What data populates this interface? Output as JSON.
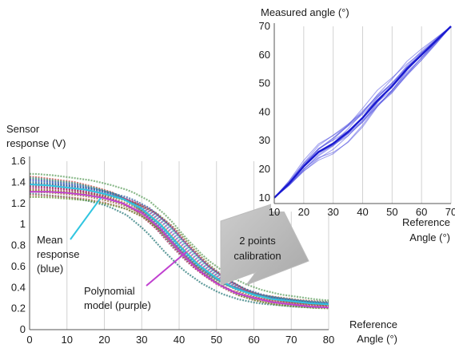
{
  "chart_data": [
    {
      "id": "sensor",
      "type": "line",
      "ylabel_lines": [
        "Sensor",
        "response (V)"
      ],
      "xlabel_lines": [
        "Reference",
        "Angle (°)"
      ],
      "xlim": [
        0,
        80
      ],
      "ylim": [
        0,
        1.6
      ],
      "xticks": [
        "0",
        "10",
        "20",
        "30",
        "40",
        "50",
        "60",
        "70",
        "80"
      ],
      "yticks": [
        "0",
        "0.2",
        "0.4",
        "0.6",
        "0.8",
        "1",
        "1.2",
        "1.4",
        "1.6"
      ],
      "grid": "vertical",
      "x": [
        0,
        5,
        10,
        15,
        20,
        25,
        30,
        35,
        40,
        45,
        50,
        55,
        60,
        65,
        70,
        75,
        80
      ],
      "sample_lines": {
        "count": 20,
        "y_offsets": [
          0.08,
          0.06,
          0.04,
          0.02,
          0.0,
          -0.02,
          -0.04,
          -0.06,
          -0.08,
          -0.1,
          0.1,
          0.05,
          -0.05,
          0.03,
          -0.03,
          0.07,
          -0.07,
          0.01,
          -0.01,
          -0.12
        ],
        "x_shifts": [
          -3,
          -2,
          -1,
          0,
          1,
          2,
          3,
          4,
          -4,
          0,
          2,
          -2,
          1,
          -1,
          3,
          -3,
          0,
          2,
          -2,
          1
        ]
      },
      "series": [
        {
          "key": "mean",
          "color": "#30c5e0",
          "values": [
            1.38,
            1.37,
            1.35,
            1.33,
            1.29,
            1.24,
            1.15,
            1.0,
            0.8,
            0.62,
            0.49,
            0.39,
            0.33,
            0.29,
            0.27,
            0.25,
            0.24
          ]
        },
        {
          "key": "polynomial",
          "color": "#c040d0",
          "values": [
            1.31,
            1.31,
            1.3,
            1.28,
            1.25,
            1.2,
            1.11,
            0.96,
            0.75,
            0.57,
            0.44,
            0.35,
            0.3,
            0.26,
            0.24,
            0.22,
            0.21
          ]
        }
      ],
      "annotations": [
        {
          "key": "mean_note",
          "lines": [
            "Mean",
            "response",
            "(blue)"
          ],
          "color": "#30c5e0",
          "target": [
            25,
            1.27
          ]
        },
        {
          "key": "poly_note",
          "lines": [
            "Polynomial",
            "model (purple)"
          ],
          "color": "#c040d0",
          "target": [
            42,
            0.92
          ]
        }
      ]
    },
    {
      "id": "measured",
      "type": "line",
      "ylabel": "Measured angle (°)",
      "xlabel_lines": [
        "Reference",
        "Angle (°)"
      ],
      "xlim": [
        10,
        70
      ],
      "ylim": [
        8,
        70
      ],
      "xticks": [
        "10",
        "20",
        "30",
        "40",
        "50",
        "60",
        "70"
      ],
      "yticks": [
        "10",
        "20",
        "30",
        "40",
        "50",
        "60",
        "70"
      ],
      "grid": "vertical",
      "x": [
        10,
        15,
        20,
        25,
        30,
        35,
        40,
        45,
        50,
        55,
        60,
        65,
        70
      ],
      "series": [
        {
          "key": "measured_mean",
          "color": "#1a1ad0",
          "values": [
            10,
            15,
            21,
            26,
            29,
            33,
            38,
            44,
            49,
            55,
            60,
            65,
            70
          ]
        }
      ],
      "run_offsets": [
        -3,
        -2.2,
        -1.5,
        -0.8,
        -0.3,
        0.3,
        0.8,
        1.5,
        2.2,
        3,
        -2.6,
        2.6,
        -1.1,
        1.1,
        0.6
      ]
    }
  ],
  "arrow_label": [
    "2 points",
    "calibration"
  ]
}
